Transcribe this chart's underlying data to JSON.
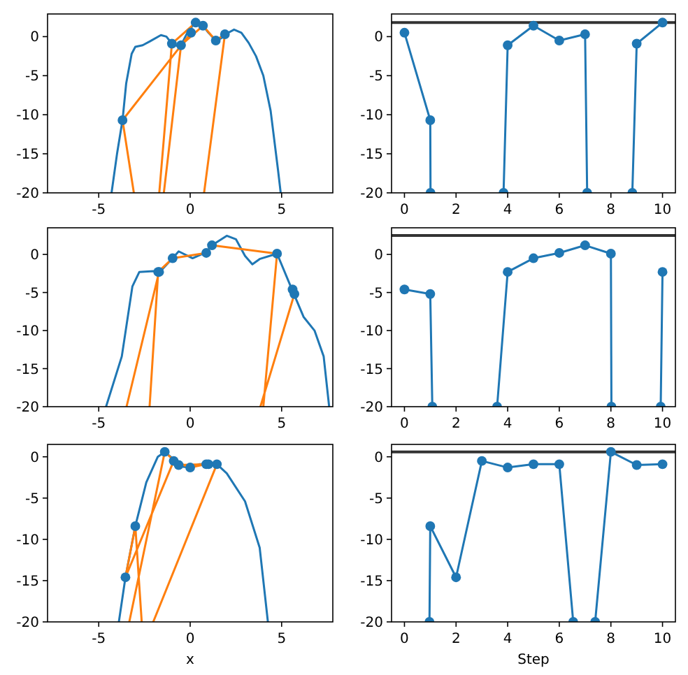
{
  "chart_data": [
    {
      "type": "line",
      "xlim": [
        -7.8,
        7.8
      ],
      "ylim": [
        -20,
        2.9
      ],
      "xticks": [
        -5,
        0,
        5
      ],
      "yticks": [
        -20,
        -15,
        -10,
        -5,
        0
      ],
      "series": [
        {
          "color": "#1f77b4",
          "marker": "none",
          "x": [
            -4.3,
            -4.0,
            -3.7,
            -3.5,
            -3.2,
            -3.0,
            -2.6,
            -2.2,
            -1.6,
            -1.3,
            -1.0,
            -0.7,
            -0.5,
            -0.2,
            0.25,
            0.7,
            1.0,
            1.4,
            1.7,
            2.0,
            2.4,
            2.8,
            3.2,
            3.6,
            4.0,
            4.4,
            4.8,
            4.95
          ],
          "values": [
            -20,
            -15,
            -10.7,
            -6,
            -2.2,
            -1.3,
            -1.1,
            -0.6,
            0.2,
            0,
            -0.9,
            -1.2,
            -1.1,
            0.3,
            1.8,
            1.4,
            0.5,
            -0.5,
            -0.2,
            0.4,
            0.9,
            0.5,
            -0.8,
            -2.5,
            -5,
            -9.5,
            -17,
            -20
          ]
        },
        {
          "type": "scatter",
          "color": "#1f77b4",
          "marker": "circle",
          "x": [
            0.05,
            -3.7,
            -0.5,
            0.7,
            1.4,
            1.9,
            -1.0,
            0.3
          ],
          "values": [
            0.5,
            -10.7,
            -1.1,
            1.4,
            -0.5,
            0.3,
            -0.9,
            1.8
          ]
        },
        {
          "color": "#ff7f0e",
          "marker": "none",
          "x": [
            0.05,
            -3.7,
            -3.08,
            null,
            -1.44,
            -0.5,
            0.7,
            1.4,
            1.9,
            0.76,
            null,
            -1.69,
            -1.0,
            0.3
          ],
          "values": [
            0.5,
            -10.7,
            -20,
            null,
            -20,
            -1.1,
            1.4,
            -0.5,
            0.3,
            -20,
            null,
            -20,
            -0.9,
            1.8
          ]
        }
      ]
    },
    {
      "type": "line",
      "xlim": [
        -0.5,
        10.5
      ],
      "ylim": [
        -20,
        2.9
      ],
      "xticks": [
        0,
        2,
        4,
        6,
        8,
        10
      ],
      "yticks": [
        -20,
        -15,
        -10,
        -5,
        0
      ],
      "ref_lines": [
        {
          "axis": "y",
          "value": 1.8,
          "color": "#333333"
        }
      ],
      "series": [
        {
          "color": "#1f77b4",
          "marker": "circle",
          "x": [
            0,
            1,
            1.01,
            null,
            3.84,
            4,
            5,
            6,
            7,
            7.08,
            null,
            8.83,
            9,
            10
          ],
          "values": [
            0.5,
            -10.7,
            -20,
            null,
            -20,
            -1.1,
            1.4,
            -0.5,
            0.3,
            -20,
            null,
            -20,
            -0.9,
            1.8
          ]
        }
      ]
    },
    {
      "type": "line",
      "xlim": [
        -7.8,
        7.8
      ],
      "ylim": [
        -20,
        3.5
      ],
      "xticks": [
        -5,
        0,
        5
      ],
      "yticks": [
        -20,
        -15,
        -10,
        -5,
        0
      ],
      "series": [
        {
          "color": "#1f77b4",
          "marker": "none",
          "x": [
            -4.6,
            -3.74,
            -3.16,
            -2.78,
            -2.0,
            -1.7,
            -0.96,
            -0.63,
            0.13,
            0.88,
            1.19,
            2.0,
            2.5,
            3.0,
            3.4,
            3.8,
            4.75,
            5.6,
            6.2,
            6.8,
            7.3,
            7.6
          ],
          "values": [
            -20,
            -13.4,
            -4.2,
            -2.3,
            -2.2,
            -2.4,
            -0.5,
            0.4,
            -0.5,
            0.3,
            1.2,
            2.45,
            2.0,
            -0.2,
            -1.3,
            -0.6,
            0.1,
            -4.8,
            -8.2,
            -10,
            -13.4,
            -20
          ]
        },
        {
          "type": "scatter",
          "color": "#1f77b4",
          "marker": "circle",
          "x": [
            5.6,
            5.7,
            -1.75,
            -0.96,
            0.88,
            1.19,
            4.75,
            -1.7
          ],
          "values": [
            -4.6,
            -5.2,
            -2.3,
            -0.5,
            0.2,
            1.2,
            0.1,
            -2.3
          ]
        },
        {
          "color": "#ff7f0e",
          "marker": "none",
          "x": [
            5.6,
            5.7,
            3.84,
            null,
            -2.22,
            -1.75,
            -0.96,
            0.88,
            1.19,
            4.75,
            4.0,
            null,
            -3.48,
            -1.7
          ],
          "values": [
            -4.6,
            -5.2,
            -20,
            null,
            -20,
            -2.3,
            -0.5,
            0.2,
            1.2,
            0.1,
            -20,
            null,
            -20,
            -2.3
          ]
        }
      ]
    },
    {
      "type": "line",
      "xlim": [
        -0.5,
        10.5
      ],
      "ylim": [
        -20,
        3.5
      ],
      "xticks": [
        0,
        2,
        4,
        6,
        8,
        10
      ],
      "yticks": [
        -20,
        -15,
        -10,
        -5,
        0
      ],
      "ref_lines": [
        {
          "axis": "y",
          "value": 2.5,
          "color": "#333333"
        }
      ],
      "series": [
        {
          "color": "#1f77b4",
          "marker": "circle",
          "x": [
            0,
            1,
            1.08,
            null,
            3.59,
            4,
            5,
            6,
            7,
            8,
            8.02,
            null,
            9.93,
            10
          ],
          "values": [
            -4.6,
            -5.2,
            -20,
            null,
            -20,
            -2.3,
            -0.5,
            0.2,
            1.2,
            0.1,
            -20,
            null,
            -20,
            -2.3
          ]
        }
      ]
    },
    {
      "type": "line",
      "xlim": [
        -7.8,
        7.8
      ],
      "ylim": [
        -20,
        1.5
      ],
      "xticks": [
        -5,
        0,
        5
      ],
      "yticks": [
        -20,
        -15,
        -10,
        -5,
        0
      ],
      "xlabel": "x",
      "series": [
        {
          "color": "#1f77b4",
          "marker": "none",
          "x": [
            -3.9,
            -3.54,
            -3.0,
            -2.4,
            -1.77,
            -1.39,
            -0.8,
            -0.4,
            0,
            0.5,
            1.0,
            1.46,
            2.0,
            3.0,
            3.8,
            4.25
          ],
          "values": [
            -20,
            -14.6,
            -8.4,
            -3.1,
            0,
            0.6,
            -0.5,
            -1.2,
            -1.3,
            -0.9,
            -0.9,
            -0.9,
            -2.0,
            -5.4,
            -11,
            -20
          ]
        },
        {
          "type": "scatter",
          "color": "#1f77b4",
          "marker": "circle",
          "x": [
            -3.0,
            -3.54,
            -0.9,
            0,
            0.88,
            1.46,
            -1.39,
            -0.63,
            1.0
          ],
          "values": [
            -8.4,
            -14.6,
            -0.5,
            -1.3,
            -0.9,
            -0.9,
            0.6,
            -1.0,
            -0.9
          ]
        },
        {
          "color": "#ff7f0e",
          "marker": "none",
          "x": [
            -2.65,
            -3.0,
            -3.54,
            -0.9,
            0,
            0.88,
            1.46,
            -2.02,
            null,
            -3.33,
            -1.39,
            -0.63,
            1.0
          ],
          "values": [
            -20,
            -8.4,
            -14.6,
            -0.5,
            -1.3,
            -0.9,
            -0.9,
            -20,
            null,
            -20,
            0.6,
            -1.0,
            -0.9
          ]
        }
      ]
    },
    {
      "type": "line",
      "xlim": [
        -0.5,
        10.5
      ],
      "ylim": [
        -20,
        1.5
      ],
      "xticks": [
        0,
        2,
        4,
        6,
        8,
        10
      ],
      "yticks": [
        -20,
        -15,
        -10,
        -5,
        0
      ],
      "xlabel": "Step",
      "ref_lines": [
        {
          "axis": "y",
          "value": 0.6,
          "color": "#333333"
        }
      ],
      "series": [
        {
          "color": "#1f77b4",
          "marker": "circle",
          "x": [
            0.97,
            1,
            2,
            3,
            4,
            5,
            6,
            6.54,
            null,
            7.39,
            8,
            9,
            10
          ],
          "values": [
            -20,
            -8.4,
            -14.6,
            -0.5,
            -1.3,
            -0.9,
            -0.9,
            -20,
            null,
            -20,
            0.6,
            -1.0,
            -0.9
          ]
        }
      ]
    }
  ]
}
